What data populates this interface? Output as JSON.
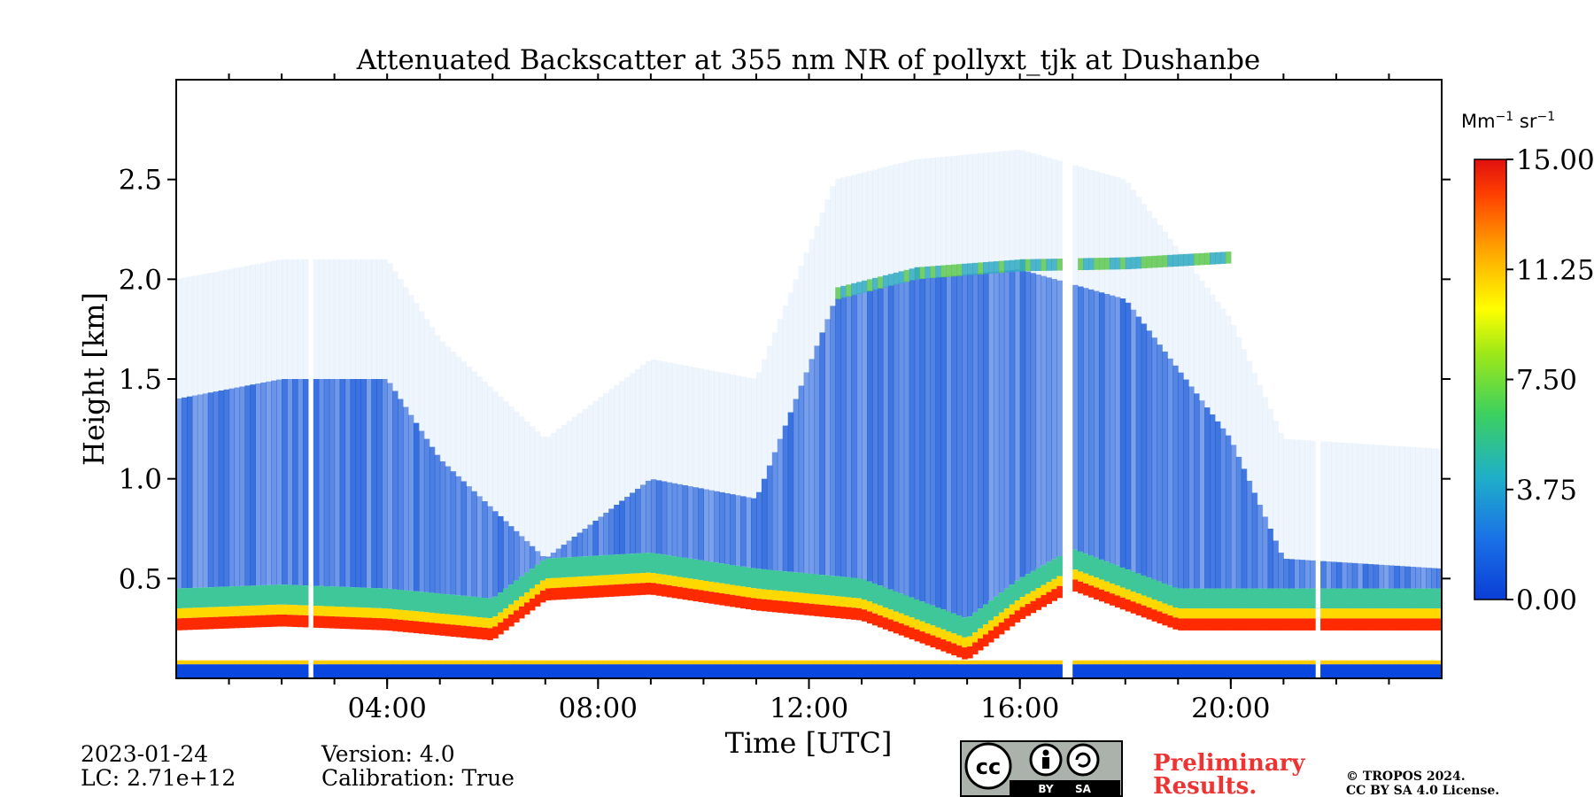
{
  "chart_data": {
    "type": "heatmap",
    "title": "Attenuated Backscatter at 355 nm NR of pollyxt_tjk at Dushanbe",
    "xlabel": "Time [UTC]",
    "ylabel": "Height [km]",
    "xlim_hours": [
      0,
      24
    ],
    "ylim_km": [
      0,
      3.0
    ],
    "x_ticks": [
      {
        "hour": 4,
        "label": "04:00"
      },
      {
        "hour": 8,
        "label": "08:00"
      },
      {
        "hour": 12,
        "label": "12:00"
      },
      {
        "hour": 16,
        "label": "16:00"
      },
      {
        "hour": 20,
        "label": "20:00"
      }
    ],
    "y_ticks": [
      {
        "km": 0.5,
        "label": "0.5"
      },
      {
        "km": 1.0,
        "label": "1.0"
      },
      {
        "km": 1.5,
        "label": "1.5"
      },
      {
        "km": 2.0,
        "label": "2.0"
      },
      {
        "km": 2.5,
        "label": "2.5"
      }
    ],
    "colorbar": {
      "unit": "Mm−1 sr−1",
      "range": [
        0,
        15
      ],
      "ticks": [
        "0.00",
        "3.75",
        "7.50",
        "11.25",
        "15.00"
      ],
      "colors": [
        "#0b3ed6",
        "#1fa0e0",
        "#2fd06a",
        "#7de020",
        "#ffff00",
        "#ffa500",
        "#ff3300",
        "#e01010"
      ]
    },
    "data_gaps_hours": [
      2.55,
      16.9,
      21.65
    ],
    "boundary_layer_top_km": [
      {
        "hour": 0,
        "value": 0.3
      },
      {
        "hour": 2,
        "value": 0.32
      },
      {
        "hour": 4,
        "value": 0.3
      },
      {
        "hour": 6,
        "value": 0.25
      },
      {
        "hour": 7,
        "value": 0.45
      },
      {
        "hour": 9,
        "value": 0.48
      },
      {
        "hour": 11,
        "value": 0.4
      },
      {
        "hour": 13,
        "value": 0.35
      },
      {
        "hour": 15,
        "value": 0.15
      },
      {
        "hour": 16,
        "value": 0.35
      },
      {
        "hour": 17,
        "value": 0.5
      },
      {
        "hour": 19,
        "value": 0.3
      },
      {
        "hour": 21,
        "value": 0.3
      },
      {
        "hour": 24,
        "value": 0.3
      }
    ],
    "aerosol_top_km": [
      {
        "hour": 0,
        "value": 1.4
      },
      {
        "hour": 2,
        "value": 1.5
      },
      {
        "hour": 4,
        "value": 1.5
      },
      {
        "hour": 5,
        "value": 1.1
      },
      {
        "hour": 7,
        "value": 0.6
      },
      {
        "hour": 9,
        "value": 1.0
      },
      {
        "hour": 11,
        "value": 0.9
      },
      {
        "hour": 12.5,
        "value": 1.9
      },
      {
        "hour": 14,
        "value": 2.0
      },
      {
        "hour": 16,
        "value": 2.05
      },
      {
        "hour": 18,
        "value": 1.9
      },
      {
        "hour": 20,
        "value": 1.2
      },
      {
        "hour": 21,
        "value": 0.6
      },
      {
        "hour": 24,
        "value": 0.55
      }
    ],
    "elevated_layer_km": [
      {
        "hour": 12.5,
        "value": 1.92
      },
      {
        "hour": 14,
        "value": 2.02
      },
      {
        "hour": 16,
        "value": 2.06
      },
      {
        "hour": 18,
        "value": 2.07
      },
      {
        "hour": 20,
        "value": 2.1
      }
    ],
    "grid": false
  },
  "footer": {
    "date": "2023-01-24",
    "lc": "LC: 2.71e+12",
    "version": "Version: 4.0",
    "calibration": "Calibration: True",
    "preliminary_line1": "Preliminary",
    "preliminary_line2": "Results.",
    "copyright_line1": "© TROPOS 2024.",
    "copyright_line2": "CC BY SA 4.0 License.",
    "license_badge": {
      "cc": "cc",
      "by": "BY",
      "sa": "SA"
    }
  }
}
